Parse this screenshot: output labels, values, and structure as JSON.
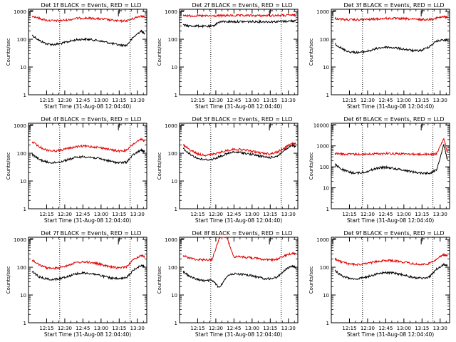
{
  "colors": {
    "events": "#000000",
    "lld": "#e00000",
    "background": "#ffffff"
  },
  "chart_data": [
    {
      "type": "line",
      "title": "Det 1f BLACK = Events, RED = LLD",
      "xlabel": "Start Time (31-Aug-08 12:04:40)",
      "ylabel": "Counts/sec",
      "x_ticks": [
        "12:15",
        "12:30",
        "12:45",
        "13:00",
        "13:15",
        "13:30"
      ],
      "y_ticks": [
        "1",
        "10",
        "100",
        "1000"
      ],
      "ylim": [
        1,
        1200
      ],
      "y_scale": "log",
      "xlim_minutes": [
        12.0,
        13.63
      ],
      "vlines_minutes": [
        12.43,
        13.4
      ],
      "x": [
        12.05,
        12.15,
        12.25,
        12.35,
        12.45,
        12.55,
        12.65,
        12.75,
        12.85,
        12.95,
        13.05,
        13.15,
        13.25,
        13.35,
        13.45,
        13.55,
        13.6
      ],
      "series": [
        {
          "name": "Events",
          "values": [
            140,
            90,
            68,
            64,
            70,
            82,
            95,
            100,
            98,
            90,
            80,
            70,
            62,
            60,
            120,
            200,
            160
          ]
        },
        {
          "name": "LLD",
          "values": [
            700,
            560,
            480,
            460,
            470,
            500,
            560,
            580,
            570,
            550,
            520,
            480,
            450,
            460,
            560,
            700,
            640
          ]
        }
      ]
    },
    {
      "type": "line",
      "title": "Det 2f BLACK = Events, RED = LLD",
      "xlabel": "Start Time (31-Aug-08 12:04:40)",
      "ylabel": "Counts/sec",
      "x_ticks": [
        "12:15",
        "12:30",
        "12:45",
        "13:00",
        "13:15",
        "13:30"
      ],
      "y_ticks": [
        "1",
        "10",
        "100",
        "1000"
      ],
      "ylim": [
        1,
        1200
      ],
      "y_scale": "log",
      "xlim_minutes": [
        12.0,
        13.63
      ],
      "vlines_minutes": [
        12.43,
        13.4
      ],
      "x": [
        12.05,
        12.15,
        12.25,
        12.35,
        12.45,
        12.55,
        12.65,
        12.75,
        12.85,
        12.95,
        13.05,
        13.15,
        13.25,
        13.35,
        13.45,
        13.55,
        13.6
      ],
      "series": [
        {
          "name": "Events",
          "values": [
            320,
            300,
            300,
            290,
            290,
            420,
            430,
            430,
            430,
            430,
            430,
            430,
            430,
            430,
            440,
            460,
            450
          ]
        },
        {
          "name": "LLD",
          "values": [
            720,
            700,
            700,
            690,
            690,
            700,
            710,
            710,
            710,
            710,
            710,
            710,
            710,
            720,
            720,
            740,
            730
          ]
        }
      ]
    },
    {
      "type": "line",
      "title": "Det 3f BLACK = Events, RED = LLD",
      "xlabel": "Start Time (31-Aug-08 12:04:40)",
      "ylabel": "Counts/sec",
      "x_ticks": [
        "12:15",
        "12:30",
        "12:45",
        "13:00",
        "13:15",
        "13:30"
      ],
      "y_ticks": [
        "1",
        "10",
        "100",
        "1000"
      ],
      "ylim": [
        1,
        1200
      ],
      "y_scale": "log",
      "xlim_minutes": [
        12.0,
        13.63
      ],
      "vlines_minutes": [
        12.43,
        13.4
      ],
      "x": [
        12.05,
        12.15,
        12.25,
        12.35,
        12.45,
        12.55,
        12.65,
        12.75,
        12.85,
        12.95,
        13.05,
        13.15,
        13.25,
        13.35,
        13.45,
        13.55,
        13.6
      ],
      "series": [
        {
          "name": "Events",
          "values": [
            70,
            45,
            35,
            33,
            35,
            40,
            48,
            52,
            50,
            46,
            42,
            38,
            40,
            55,
            85,
            95,
            90
          ]
        },
        {
          "name": "LLD",
          "values": [
            560,
            520,
            500,
            500,
            510,
            520,
            540,
            560,
            560,
            550,
            540,
            520,
            510,
            520,
            580,
            640,
            620
          ]
        }
      ]
    },
    {
      "type": "line",
      "title": "Det 4f BLACK = Events, RED = LLD",
      "xlabel": "Start Time (31-Aug-08 12:04:40)",
      "ylabel": "Counts/sec",
      "x_ticks": [
        "12:15",
        "12:30",
        "12:45",
        "13:00",
        "13:15",
        "13:30"
      ],
      "y_ticks": [
        "1",
        "10",
        "100",
        "1000"
      ],
      "ylim": [
        1,
        1200
      ],
      "y_scale": "log",
      "xlim_minutes": [
        12.0,
        13.63
      ],
      "vlines_minutes": [
        12.43,
        13.4
      ],
      "x": [
        12.05,
        12.15,
        12.25,
        12.35,
        12.45,
        12.55,
        12.65,
        12.75,
        12.85,
        12.95,
        13.05,
        13.15,
        13.25,
        13.35,
        13.45,
        13.55,
        13.6
      ],
      "series": [
        {
          "name": "Events",
          "values": [
            90,
            60,
            48,
            45,
            50,
            60,
            70,
            75,
            72,
            66,
            58,
            50,
            45,
            48,
            90,
            130,
            115
          ]
        },
        {
          "name": "LLD",
          "values": [
            260,
            170,
            130,
            120,
            130,
            150,
            170,
            180,
            175,
            165,
            150,
            130,
            120,
            125,
            220,
            310,
            280
          ]
        }
      ]
    },
    {
      "type": "line",
      "title": "Det 5f BLACK = Events, RED = LLD",
      "xlabel": "Start Time (31-Aug-08 12:04:40)",
      "ylabel": "Counts/sec",
      "x_ticks": [
        "12:15",
        "12:30",
        "12:45",
        "13:00",
        "13:15",
        "13:30"
      ],
      "y_ticks": [
        "1",
        "10",
        "100",
        "1000"
      ],
      "ylim": [
        1,
        1200
      ],
      "y_scale": "log",
      "xlim_minutes": [
        12.0,
        13.63
      ],
      "vlines_minutes": [
        12.43,
        13.4
      ],
      "x": [
        12.05,
        12.15,
        12.25,
        12.35,
        12.45,
        12.55,
        12.65,
        12.75,
        12.85,
        12.95,
        13.05,
        13.15,
        13.25,
        13.35,
        13.45,
        13.55,
        13.6
      ],
      "series": [
        {
          "name": "Events",
          "values": [
            150,
            90,
            65,
            58,
            60,
            75,
            95,
            110,
            105,
            95,
            85,
            75,
            70,
            80,
            130,
            190,
            170
          ]
        },
        {
          "name": "LLD",
          "values": [
            200,
            130,
            95,
            85,
            90,
            105,
            125,
            140,
            135,
            125,
            110,
            100,
            95,
            110,
            160,
            230,
            210
          ]
        }
      ]
    },
    {
      "type": "line",
      "title": "Det 6f BLACK = Events, RED = LLD",
      "xlabel": "Start Time (31-Aug-08 12:04:40)",
      "ylabel": "Counts/sec",
      "x_ticks": [
        "12:15",
        "12:30",
        "12:45",
        "13:00",
        "13:15",
        "13:30"
      ],
      "y_ticks": [
        "1",
        "10",
        "100",
        "1000",
        "10000"
      ],
      "ylim": [
        1,
        12000
      ],
      "y_scale": "log",
      "xlim_minutes": [
        12.0,
        13.63
      ],
      "vlines_minutes": [
        12.43,
        13.4
      ],
      "x": [
        12.05,
        12.15,
        12.25,
        12.35,
        12.45,
        12.55,
        12.65,
        12.75,
        12.85,
        12.95,
        13.05,
        13.15,
        13.25,
        13.35,
        13.45,
        13.55,
        13.6
      ],
      "series": [
        {
          "name": "Events",
          "values": [
            130,
            75,
            55,
            50,
            55,
            70,
            90,
            95,
            85,
            75,
            65,
            55,
            50,
            50,
            70,
            1200,
            220
          ]
        },
        {
          "name": "LLD",
          "values": [
            430,
            410,
            400,
            400,
            400,
            410,
            420,
            440,
            430,
            420,
            410,
            400,
            400,
            400,
            410,
            2200,
            480
          ]
        }
      ]
    },
    {
      "type": "line",
      "title": "Det 7f BLACK = Events, RED = LLD",
      "xlabel": "Start Time (31-Aug-08 12:04:40)",
      "ylabel": "Counts/sec",
      "x_ticks": [
        "12:15",
        "12:30",
        "12:45",
        "13:00",
        "13:15",
        "13:30"
      ],
      "y_ticks": [
        "1",
        "10",
        "100",
        "1000"
      ],
      "ylim": [
        1,
        1200
      ],
      "y_scale": "log",
      "xlim_minutes": [
        12.0,
        13.63
      ],
      "vlines_minutes": [
        12.43,
        13.4
      ],
      "x": [
        12.05,
        12.15,
        12.25,
        12.35,
        12.45,
        12.55,
        12.65,
        12.75,
        12.85,
        12.95,
        13.05,
        13.15,
        13.25,
        13.35,
        13.45,
        13.55,
        13.6
      ],
      "series": [
        {
          "name": "Events",
          "values": [
            70,
            45,
            38,
            36,
            40,
            48,
            58,
            62,
            60,
            54,
            46,
            40,
            38,
            42,
            80,
            120,
            105
          ]
        },
        {
          "name": "LLD",
          "values": [
            180,
            120,
            95,
            90,
            100,
            120,
            145,
            155,
            150,
            135,
            115,
            100,
            95,
            105,
            190,
            270,
            240
          ]
        }
      ]
    },
    {
      "type": "line",
      "title": "Det 8f BLACK = Events, RED = LLD",
      "xlabel": "Start Time (31-Aug-08 12:04:40)",
      "ylabel": "Counts/sec",
      "x_ticks": [
        "12:15",
        "12:30",
        "12:45",
        "13:00",
        "13:15",
        "13:30"
      ],
      "y_ticks": [
        "1",
        "10",
        "100",
        "1000"
      ],
      "ylim": [
        1,
        1200
      ],
      "y_scale": "log",
      "xlim_minutes": [
        12.0,
        13.63
      ],
      "vlines_minutes": [
        12.43,
        13.4
      ],
      "x": [
        12.05,
        12.15,
        12.25,
        12.35,
        12.45,
        12.55,
        12.65,
        12.75,
        12.85,
        12.95,
        13.05,
        13.15,
        13.25,
        13.35,
        13.45,
        13.55,
        13.6
      ],
      "series": [
        {
          "name": "Events",
          "values": [
            70,
            45,
            36,
            32,
            34,
            18,
            48,
            58,
            56,
            52,
            46,
            40,
            38,
            44,
            80,
            110,
            100
          ]
        },
        {
          "name": "LLD",
          "values": [
            260,
            210,
            190,
            185,
            190,
            1200,
            1200,
            240,
            235,
            225,
            210,
            195,
            185,
            195,
            260,
            320,
            300
          ]
        }
      ]
    },
    {
      "type": "line",
      "title": "Det 9f BLACK = Events, RED = LLD",
      "xlabel": "Start Time (31-Aug-08 12:04:40)",
      "ylabel": "Counts/sec",
      "x_ticks": [
        "12:15",
        "12:30",
        "12:45",
        "13:00",
        "13:15",
        "13:30"
      ],
      "y_ticks": [
        "1",
        "10",
        "100",
        "1000"
      ],
      "ylim": [
        1,
        1200
      ],
      "y_scale": "log",
      "xlim_minutes": [
        12.0,
        13.63
      ],
      "vlines_minutes": [
        12.43,
        13.4
      ],
      "x": [
        12.05,
        12.15,
        12.25,
        12.35,
        12.45,
        12.55,
        12.65,
        12.75,
        12.85,
        12.95,
        13.05,
        13.15,
        13.25,
        13.35,
        13.45,
        13.55,
        13.6
      ],
      "series": [
        {
          "name": "Events",
          "values": [
            75,
            48,
            40,
            38,
            42,
            50,
            60,
            64,
            62,
            56,
            48,
            42,
            40,
            44,
            85,
            125,
            110
          ]
        },
        {
          "name": "LLD",
          "values": [
            200,
            150,
            130,
            125,
            130,
            145,
            165,
            175,
            170,
            160,
            145,
            130,
            125,
            135,
            200,
            280,
            250
          ]
        }
      ]
    }
  ]
}
